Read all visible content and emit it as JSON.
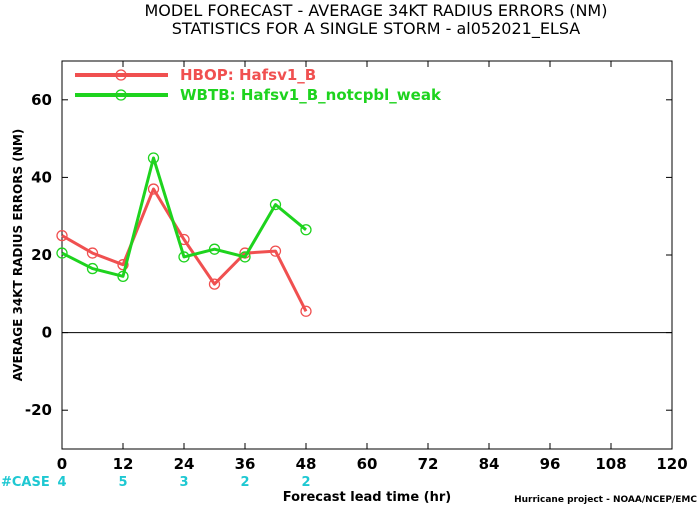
{
  "chart_data": {
    "type": "line",
    "title_line1": "MODEL FORECAST - AVERAGE 34KT RADIUS ERRORS (NM)",
    "title_line2": "STATISTICS FOR A SINGLE STORM - al052021_ELSA",
    "xlabel": "Forecast lead time (hr)",
    "ylabel": "AVERAGE 34KT RADIUS ERRORS (NM)",
    "xlim": [
      0,
      120
    ],
    "ylim": [
      -30,
      70
    ],
    "x_ticks": [
      0,
      12,
      24,
      36,
      48,
      60,
      72,
      84,
      96,
      108,
      120
    ],
    "y_ticks": [
      -20,
      0,
      20,
      40,
      60
    ],
    "grid": false,
    "legend_position": "top-left",
    "zero_line": true,
    "series": [
      {
        "name": "HBOP: Hafsv1_B",
        "color": "#f05050",
        "x": [
          0,
          6,
          12,
          18,
          24,
          30,
          36,
          42,
          48
        ],
        "y": [
          25,
          20.5,
          17.5,
          37,
          24,
          12.5,
          20.5,
          21,
          5.5
        ]
      },
      {
        "name": "WBTB: Hafsv1_B_notcpbl_weak",
        "color": "#1ed31e",
        "x": [
          0,
          6,
          12,
          18,
          24,
          30,
          36,
          42,
          48
        ],
        "y": [
          20.5,
          16.5,
          14.5,
          45,
          19.5,
          21.5,
          19.5,
          33,
          26.5
        ]
      }
    ],
    "case_counts": {
      "label": "#CASE",
      "color": "#1ec8d2",
      "x": [
        0,
        12,
        24,
        36,
        48
      ],
      "values": [
        "4",
        "5",
        "3",
        "2",
        "2"
      ]
    },
    "credit": "Hurricane project - NOAA/NCEP/EMC"
  }
}
